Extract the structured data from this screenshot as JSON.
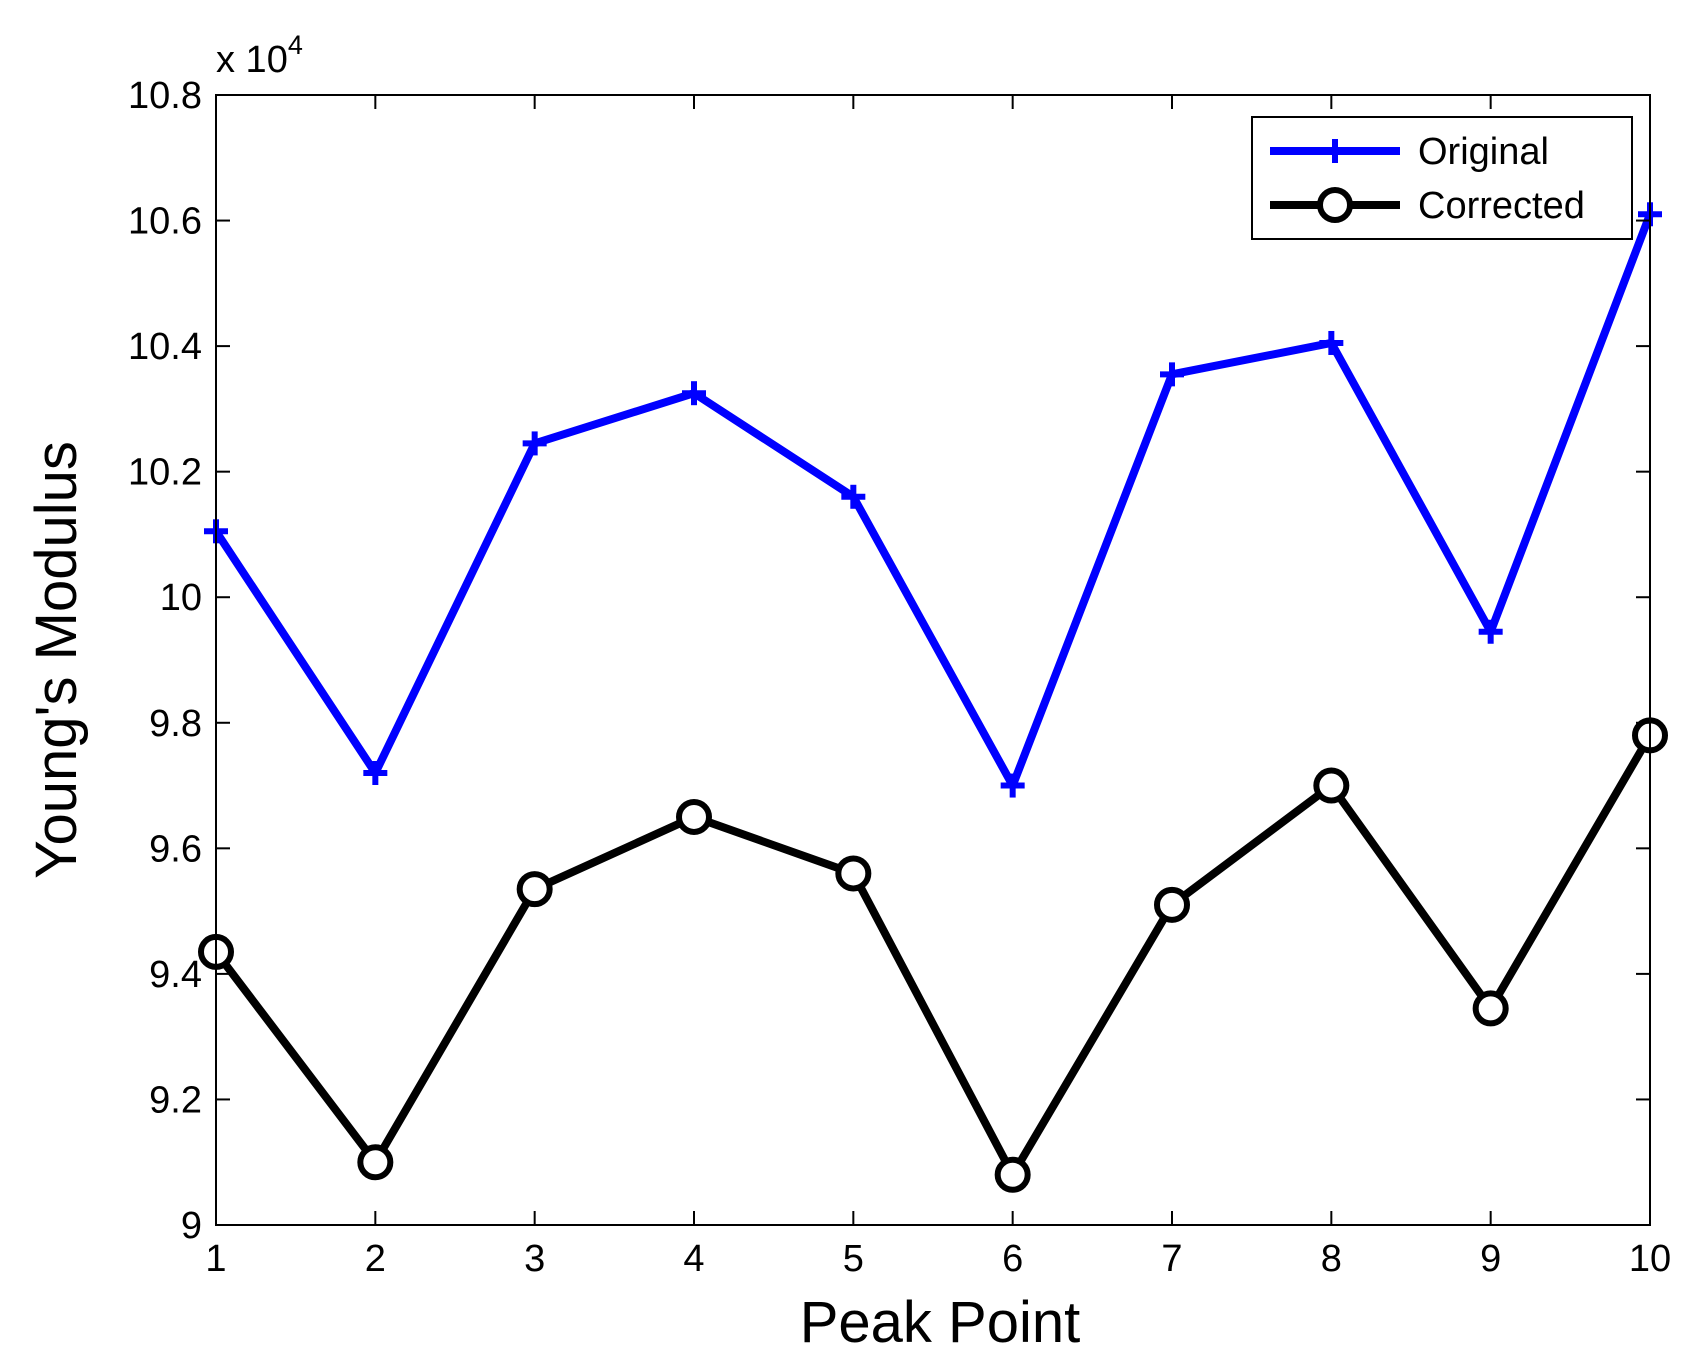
{
  "chart_data": {
    "type": "line",
    "xlabel": "Peak Point",
    "ylabel": "Young's Modulus",
    "exponent_label": {
      "prefix": "x 10",
      "power": "4"
    },
    "x": [
      1,
      2,
      3,
      4,
      5,
      6,
      7,
      8,
      9,
      10
    ],
    "xlim": [
      1,
      10
    ],
    "ylim": [
      9.0,
      10.8
    ],
    "y_scale_factor": 10000,
    "xticks": [
      1,
      2,
      3,
      4,
      5,
      6,
      7,
      8,
      9,
      10
    ],
    "xtick_labels": [
      "1",
      "2",
      "3",
      "4",
      "5",
      "6",
      "7",
      "8",
      "9",
      "10"
    ],
    "yticks": [
      9.0,
      9.2,
      9.4,
      9.6,
      9.8,
      10.0,
      10.2,
      10.4,
      10.6,
      10.8
    ],
    "ytick_labels": [
      "9",
      "9.2",
      "9.4",
      "9.6",
      "9.8",
      "10",
      "10.2",
      "10.4",
      "10.6",
      "10.8"
    ],
    "grid": false,
    "legend_position": "top-right",
    "series": [
      {
        "name": "Original",
        "color": "#0000ff",
        "marker": "plus",
        "values": [
          10.105,
          9.72,
          10.245,
          10.325,
          10.16,
          9.7,
          10.355,
          10.405,
          9.945,
          10.61
        ]
      },
      {
        "name": "Corrected",
        "color": "#000000",
        "marker": "circle",
        "values": [
          9.435,
          9.1,
          9.535,
          9.65,
          9.56,
          9.08,
          9.51,
          9.7,
          9.345,
          9.78
        ]
      }
    ]
  }
}
